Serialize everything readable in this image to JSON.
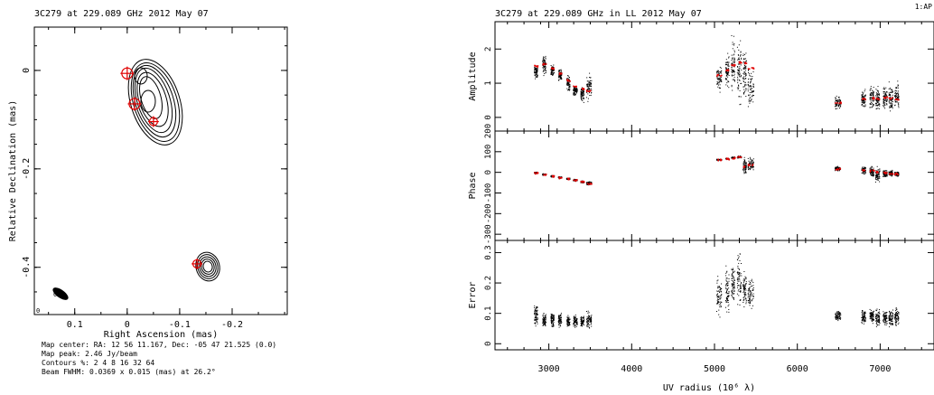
{
  "map": {
    "title": "3C279 at 229.089 GHz 2012 May 07",
    "xlabel": "Right Ascension  (mas)",
    "ylabel": "Relative Declination  (mas)",
    "xticks": [
      {
        "v": 0.1,
        "label": "0.1"
      },
      {
        "v": 0,
        "label": "0"
      },
      {
        "v": -0.1,
        "label": "-0.1"
      },
      {
        "v": -0.2,
        "label": "-0.2"
      }
    ],
    "yticks": [
      {
        "v": 0,
        "label": "0"
      },
      {
        "v": -0.2,
        "label": "-0.2"
      },
      {
        "v": -0.4,
        "label": "-0.4"
      }
    ],
    "footer": {
      "center": "Map center:  RA: 12 56 11.167,  Dec: -05 47 21.525 (0.0)",
      "peak": "Map peak: 2.46 Jy/beam",
      "contours": "Contours %: 2 4 8 16 32 64",
      "beam": "Beam FWHM: 0.0369 x 0.015 (mas) at 26.2°"
    },
    "components": [
      {
        "ra": 0.0,
        "dec": -0.006,
        "size": "large"
      },
      {
        "ra": -0.014,
        "dec": -0.068,
        "size": "large"
      },
      {
        "ra": -0.05,
        "dec": -0.104,
        "size": "small"
      },
      {
        "ra": -0.133,
        "dec": -0.393,
        "size": "small"
      }
    ],
    "contour_color": "#000000",
    "model_color": "#e00000",
    "corner_marks": [
      "0",
      "0"
    ]
  },
  "chart_data": [
    {
      "type": "scatter",
      "title": "3C279 at 229.089 GHz in LL  2012 May 07",
      "corner_label": "1:AP",
      "xlabel": "UV radius  (10⁶ λ)",
      "xlim": [
        2350,
        7650
      ],
      "xticks": [
        3000,
        4000,
        5000,
        6000,
        7000
      ],
      "clusters_x": [
        [
          2820,
          2860
        ],
        [
          2920,
          2960
        ],
        [
          3020,
          3060
        ],
        [
          3110,
          3150
        ],
        [
          3210,
          3250
        ],
        [
          3290,
          3340
        ],
        [
          3380,
          3420
        ],
        [
          3450,
          3510
        ],
        [
          5020,
          5080
        ],
        [
          5130,
          5170
        ],
        [
          5200,
          5240
        ],
        [
          5270,
          5320
        ],
        [
          5340,
          5380
        ],
        [
          5400,
          5470
        ],
        [
          6450,
          6520
        ],
        [
          6770,
          6820
        ],
        [
          6870,
          6920
        ],
        [
          6940,
          6990
        ],
        [
          7030,
          7080
        ],
        [
          7100,
          7150
        ],
        [
          7170,
          7220
        ]
      ],
      "panels": [
        {
          "ylabel": "Amplitude",
          "ylim": [
            -0.4,
            2.8
          ],
          "yticks": [
            {
              "v": 0,
              "label": "0"
            },
            {
              "v": 1,
              "label": "1"
            },
            {
              "v": 2,
              "label": "2"
            }
          ],
          "data_ranges": [
            [
              1.1,
              1.6
            ],
            [
              1.2,
              1.9
            ],
            [
              1.2,
              1.6
            ],
            [
              1.0,
              1.5
            ],
            [
              0.7,
              1.3
            ],
            [
              0.6,
              1.0
            ],
            [
              0.4,
              1.0
            ],
            [
              0.4,
              1.4
            ],
            [
              0.7,
              1.6
            ],
            [
              0.8,
              2.0
            ],
            [
              0.6,
              2.5
            ],
            [
              0.2,
              2.6
            ],
            [
              0.3,
              2.3
            ],
            [
              0.1,
              1.6
            ],
            [
              0.2,
              0.7
            ],
            [
              0.2,
              0.9
            ],
            [
              0.2,
              1.0
            ],
            [
              0.1,
              1.0
            ],
            [
              0.2,
              1.0
            ],
            [
              0.1,
              1.1
            ],
            [
              0.1,
              1.2
            ]
          ],
          "model": [
            1.52,
            1.58,
            1.45,
            1.3,
            1.1,
            0.92,
            0.85,
            0.8,
            1.25,
            1.4,
            1.55,
            1.62,
            1.6,
            1.45,
            0.45,
            0.55,
            0.58,
            0.56,
            0.6,
            0.58,
            0.55
          ]
        },
        {
          "ylabel": "Phase",
          "ylim": [
            -330,
            200
          ],
          "yticks": [
            {
              "v": -300,
              "label": "-300"
            },
            {
              "v": -200,
              "label": "-200"
            },
            {
              "v": -100,
              "label": "-100"
            },
            {
              "v": 0,
              "label": "0"
            },
            {
              "v": 100,
              "label": "100"
            },
            {
              "v": 200,
              "label": "200"
            }
          ],
          "data_ranges": [
            [
              -6,
              4
            ],
            [
              -14,
              -4
            ],
            [
              -22,
              -12
            ],
            [
              -28,
              -18
            ],
            [
              -34,
              -24
            ],
            [
              -42,
              -30
            ],
            [
              -50,
              -38
            ],
            [
              -62,
              -40
            ],
            [
              58,
              68
            ],
            [
              64,
              72
            ],
            [
              68,
              78
            ],
            [
              70,
              82
            ],
            [
              -20,
              80
            ],
            [
              -10,
              92
            ],
            [
              5,
              35
            ],
            [
              -10,
              35
            ],
            [
              -30,
              40
            ],
            [
              -60,
              35
            ],
            [
              -30,
              20
            ],
            [
              -20,
              15
            ],
            [
              -20,
              10
            ]
          ],
          "model": [
            -1,
            -9,
            -17,
            -23,
            -29,
            -36,
            -44,
            -52,
            63,
            68,
            73,
            76,
            30,
            40,
            20,
            15,
            10,
            5,
            0,
            -3,
            -5
          ]
        },
        {
          "ylabel": "Error",
          "ylim": [
            -0.02,
            0.34
          ],
          "yticks": [
            {
              "v": 0,
              "label": "0"
            },
            {
              "v": 0.1,
              "label": "0.1"
            },
            {
              "v": 0.2,
              "label": "0.2"
            },
            {
              "v": 0.3,
              "label": "0.3"
            }
          ],
          "data_ranges": [
            [
              0.05,
              0.14
            ],
            [
              0.05,
              0.11
            ],
            [
              0.05,
              0.11
            ],
            [
              0.05,
              0.11
            ],
            [
              0.05,
              0.1
            ],
            [
              0.05,
              0.1
            ],
            [
              0.05,
              0.1
            ],
            [
              0.04,
              0.12
            ],
            [
              0.08,
              0.24
            ],
            [
              0.08,
              0.28
            ],
            [
              0.09,
              0.3
            ],
            [
              0.1,
              0.32
            ],
            [
              0.1,
              0.26
            ],
            [
              0.11,
              0.23
            ],
            [
              0.07,
              0.12
            ],
            [
              0.06,
              0.12
            ],
            [
              0.06,
              0.12
            ],
            [
              0.05,
              0.12
            ],
            [
              0.05,
              0.12
            ],
            [
              0.05,
              0.12
            ],
            [
              0.05,
              0.13
            ]
          ]
        }
      ]
    }
  ]
}
